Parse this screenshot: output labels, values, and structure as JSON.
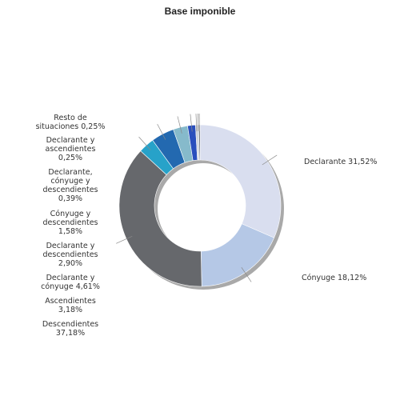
{
  "chart_data": {
    "type": "pie",
    "variant": "donut",
    "title": "Base imponible",
    "legend": "none",
    "slices": [
      {
        "label": "Declarante",
        "display": "Declarante 31,52%",
        "value": 31.52,
        "color": "#d9deef",
        "side": "right"
      },
      {
        "label": "Cónyuge",
        "display": "Cónyuge 18,12%",
        "value": 18.12,
        "color": "#b5c8e6",
        "side": "right"
      },
      {
        "label": "Descendientes",
        "display": "Descendientes\n37,18%",
        "value": 37.18,
        "color": "#66686c",
        "side": "left"
      },
      {
        "label": "Ascendientes",
        "display": "Ascendientes\n3,18%",
        "value": 3.18,
        "color": "#27a2c9",
        "side": "left"
      },
      {
        "label": "Declarante y cónyuge",
        "display": "Declarante y\ncónyuge 4,61%",
        "value": 4.61,
        "color": "#2369b0",
        "side": "left"
      },
      {
        "label": "Declarante y descendientes",
        "display": "Declarante y\ndescendientes\n2,90%",
        "value": 2.9,
        "color": "#86bacb",
        "side": "left"
      },
      {
        "label": "Cónyuge y descendientes",
        "display": "Cónyuge y\ndescendientes\n1,58%",
        "value": 1.58,
        "color": "#2a4fbd",
        "side": "left"
      },
      {
        "label": "Declarante, cónyuge y descendientes",
        "display": "Declarante,\ncónyuge y\ndescendientes\n0,39%",
        "value": 0.39,
        "color": "#c7cbd3",
        "side": "left"
      },
      {
        "label": "Declarante y ascendientes",
        "display": "Declarante y\nascendientes\n0,25%",
        "value": 0.25,
        "color": "#9aa6bd",
        "side": "left"
      },
      {
        "label": "Resto de situaciones",
        "display": "Resto de\nsituaciones 0,25%",
        "value": 0.25,
        "color": "#4b4f58",
        "side": "left"
      }
    ]
  }
}
